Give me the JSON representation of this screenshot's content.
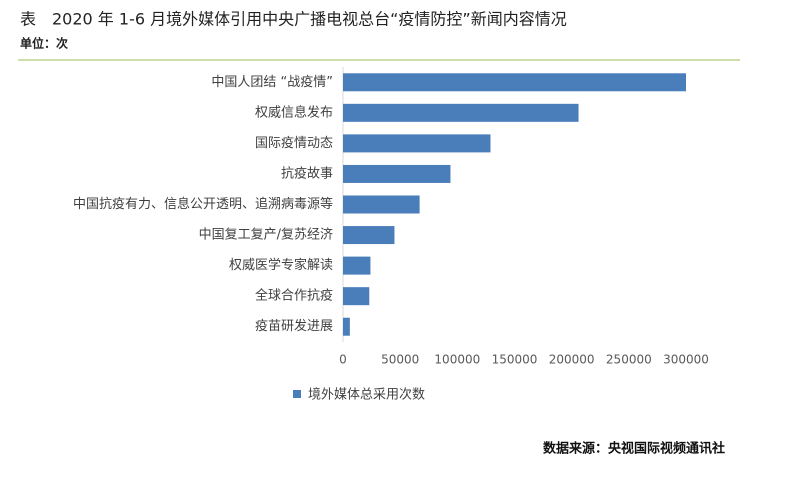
{
  "chart_data": {
    "type": "bar",
    "orientation": "horizontal",
    "title": "表　2020 年 1-6 月境外媒体引用中央广播电视总台“疫情防控”新闻内容情况",
    "subtitle": "单位：次",
    "source": "数据来源：央视国际视频通讯社",
    "categories": [
      "中国人团结 “战疫情”",
      "权威信息发布",
      "国际疫情动态",
      "抗疫故事",
      "中国抗疫有力、信息公开透明、追溯病毒源等",
      "中国复工复产/复苏经济",
      "权威医学专家解读",
      "全球合作抗疫",
      "疫苗研发进展"
    ],
    "series": [
      {
        "name": "境外媒体总采用次数",
        "color": "#4a7ebb",
        "values": [
          300000,
          206000,
          129000,
          94000,
          67000,
          45000,
          24000,
          23000,
          6000
        ]
      }
    ],
    "xlim": [
      0,
      300000
    ],
    "xticks": [
      0,
      50000,
      100000,
      150000,
      200000,
      250000,
      300000
    ],
    "legend": "bottom"
  }
}
